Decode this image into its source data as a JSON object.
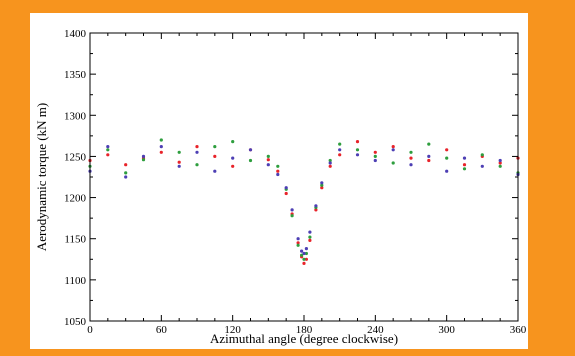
{
  "chart_data": {
    "type": "scatter",
    "title": "",
    "xlabel": "Azimuthal angle (degree clockwise)",
    "ylabel": "Aerodynamic torque (kN m)",
    "xlim": [
      0,
      360
    ],
    "ylim": [
      1050,
      1400
    ],
    "xticks": [
      0,
      60,
      120,
      180,
      240,
      300,
      360
    ],
    "yticks": [
      1050,
      1100,
      1150,
      1200,
      1250,
      1300,
      1350,
      1400
    ],
    "grid": false,
    "legend": "none",
    "series": [
      {
        "color": "#e8232a",
        "x": [
          0,
          15,
          30,
          45,
          60,
          75,
          90,
          105,
          120,
          135,
          150,
          158,
          165,
          170,
          175,
          178,
          180,
          182,
          185,
          190,
          195,
          202,
          210,
          225,
          240,
          255,
          270,
          285,
          300,
          315,
          330,
          345,
          360
        ],
        "y": [
          1245,
          1252,
          1240,
          1248,
          1255,
          1243,
          1262,
          1250,
          1238,
          1258,
          1246,
          1232,
          1205,
          1180,
          1145,
          1128,
          1120,
          1125,
          1148,
          1185,
          1212,
          1238,
          1252,
          1268,
          1255,
          1262,
          1248,
          1245,
          1258,
          1240,
          1250,
          1242,
          1248
        ]
      },
      {
        "color": "#2e9e3e",
        "x": [
          0,
          15,
          30,
          45,
          60,
          75,
          90,
          105,
          120,
          135,
          150,
          158,
          165,
          170,
          175,
          178,
          180,
          182,
          185,
          190,
          195,
          202,
          210,
          225,
          240,
          255,
          270,
          285,
          300,
          315,
          330,
          345,
          360
        ],
        "y": [
          1238,
          1258,
          1230,
          1246,
          1270,
          1255,
          1240,
          1262,
          1268,
          1245,
          1250,
          1238,
          1210,
          1178,
          1142,
          1130,
          1125,
          1132,
          1152,
          1188,
          1215,
          1245,
          1265,
          1258,
          1250,
          1242,
          1255,
          1265,
          1248,
          1235,
          1252,
          1238,
          1230
        ]
      },
      {
        "color": "#4d3fb4",
        "x": [
          0,
          15,
          30,
          45,
          60,
          75,
          90,
          105,
          120,
          135,
          150,
          158,
          165,
          170,
          175,
          178,
          180,
          182,
          185,
          190,
          195,
          202,
          210,
          225,
          240,
          255,
          270,
          285,
          300,
          315,
          330,
          345,
          360
        ],
        "y": [
          1232,
          1262,
          1225,
          1250,
          1262,
          1238,
          1255,
          1232,
          1248,
          1258,
          1240,
          1228,
          1212,
          1185,
          1150,
          1135,
          1132,
          1138,
          1158,
          1190,
          1218,
          1242,
          1258,
          1252,
          1245,
          1258,
          1240,
          1250,
          1232,
          1248,
          1238,
          1245,
          1228
        ]
      }
    ]
  }
}
